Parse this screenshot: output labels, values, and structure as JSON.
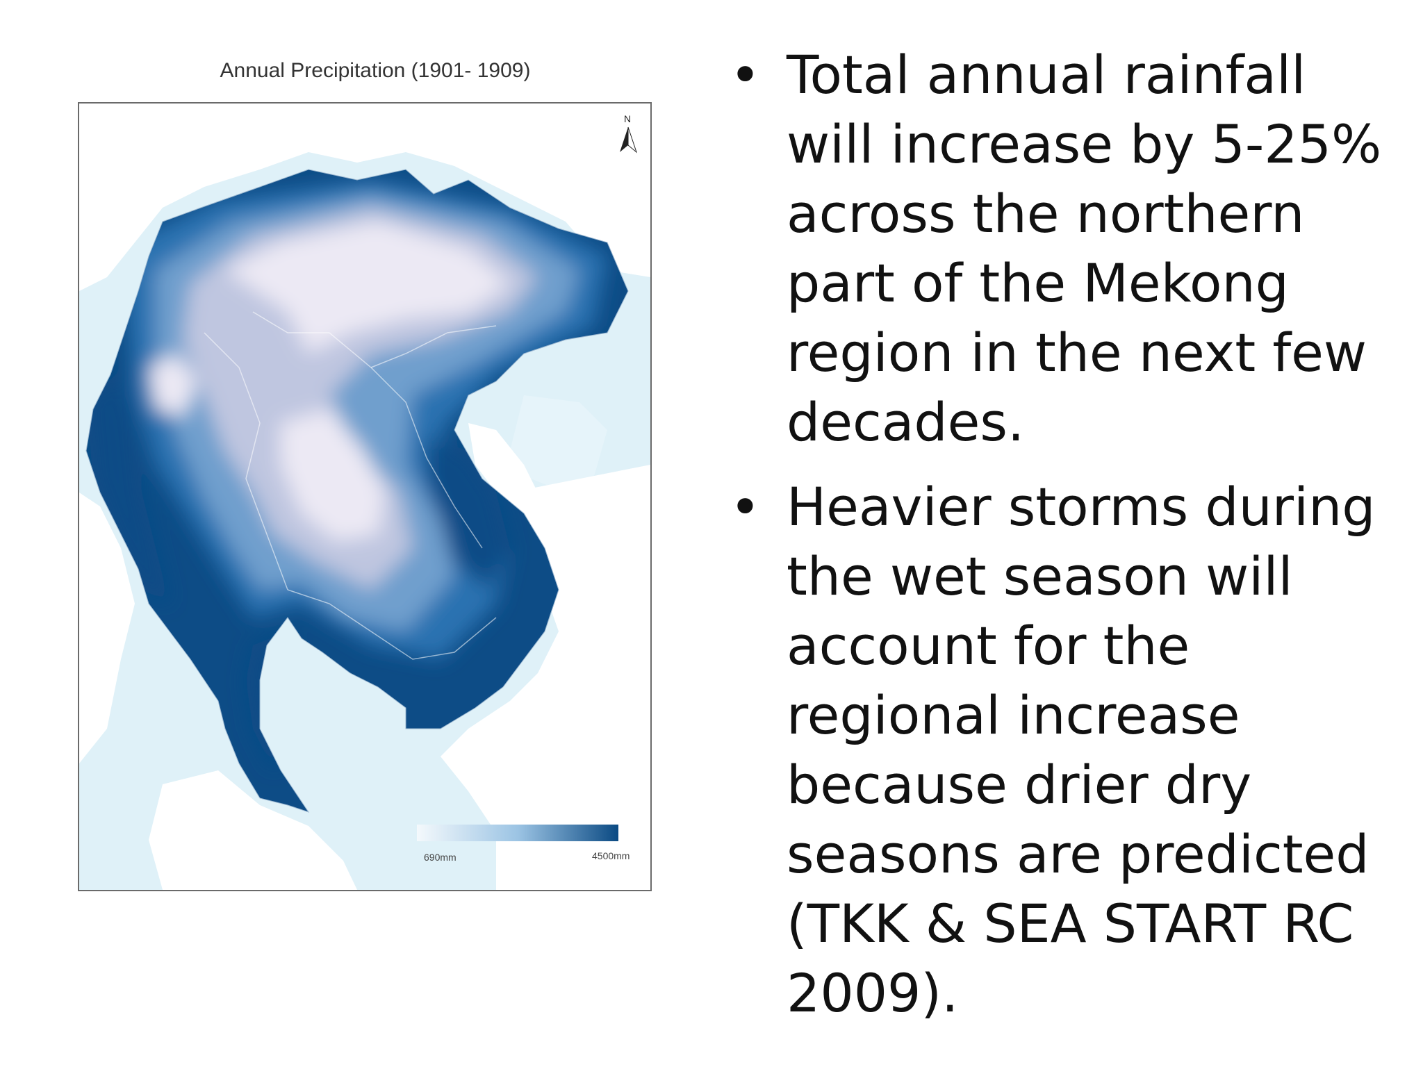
{
  "map": {
    "title": "Annual Precipitation (1901- 1909)",
    "north_label": "N",
    "north_icon": "north-arrow-icon",
    "legend": {
      "min_label": "690mm",
      "max_label": "4500mm",
      "min_color": "#f4f9fc",
      "max_color": "#0b4a83"
    },
    "colors": {
      "sea": "#dff1f8",
      "land_outside": "#ffffff",
      "lavender": "#ece9f4",
      "light": "#bfc6e0",
      "medium": "#6f9fcd",
      "strong": "#2a72b1",
      "dark": "#0d4c86"
    }
  },
  "bullets": [
    "Total annual rainfall will increase by 5-25% across the northern part of the Mekong region in the next few decades.",
    "Heavier storms during the wet season will account for the regional increase because drier dry seasons are predicted (TKK & SEA START RC 2009)."
  ],
  "bullet_symbol": "•"
}
